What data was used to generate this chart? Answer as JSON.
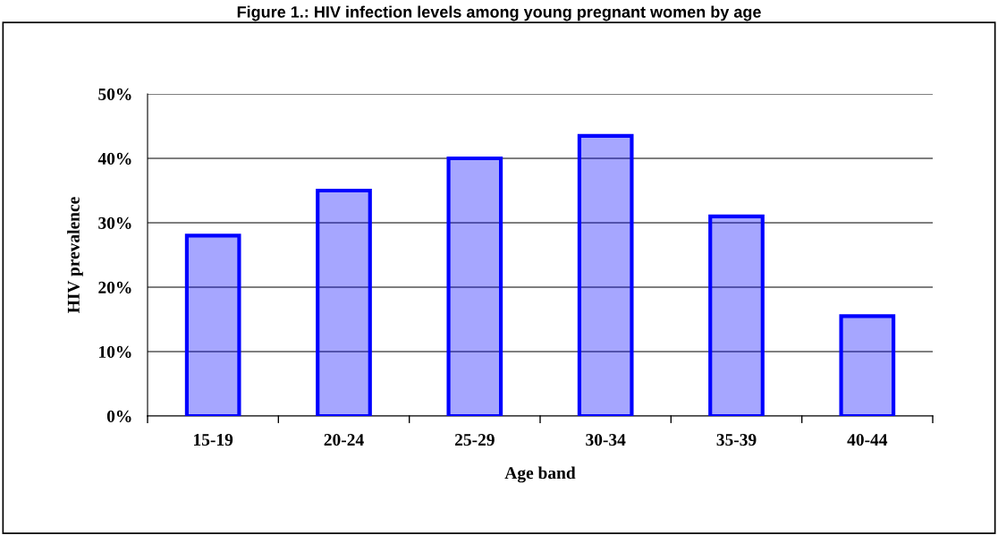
{
  "chart_data": {
    "type": "bar",
    "title": "Figure 1.: HIV infection levels among young pregnant women by age",
    "xlabel": "Age band",
    "ylabel": "HIV prevalence",
    "categories": [
      "15-19",
      "20-24",
      "25-29",
      "30-34",
      "35-39",
      "40-44"
    ],
    "values": [
      28,
      35,
      40,
      43.5,
      31,
      15.5
    ],
    "color": "#0000ff",
    "ylim": [
      0,
      50
    ],
    "yticks": [
      {
        "value": 0,
        "label": "0%"
      },
      {
        "value": 10,
        "label": "10%"
      },
      {
        "value": 20,
        "label": "20%"
      },
      {
        "value": 30,
        "label": "30%"
      },
      {
        "value": 40,
        "label": "40%"
      },
      {
        "value": 50,
        "label": "50%"
      }
    ],
    "grid": "y",
    "legend": false
  }
}
